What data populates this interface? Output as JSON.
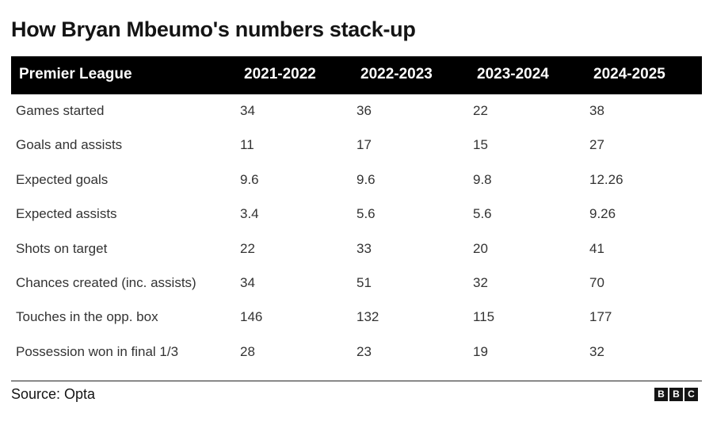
{
  "title": "How Bryan Mbeumo's numbers stack-up",
  "table": {
    "header": [
      "Premier League",
      "2021-2022",
      "2022-2023",
      "2023-2024",
      "2024-2025"
    ],
    "rows": [
      [
        "Games started",
        "34",
        "36",
        "22",
        "38"
      ],
      [
        "Goals and assists",
        "11",
        "17",
        "15",
        "27"
      ],
      [
        "Expected goals",
        "9.6",
        "9.6",
        "9.8",
        "12.26"
      ],
      [
        "Expected assists",
        "3.4",
        "5.6",
        "5.6",
        "9.26"
      ],
      [
        "Shots on target",
        "22",
        "33",
        "20",
        "41"
      ],
      [
        "Chances created (inc. assists)",
        "34",
        "51",
        "32",
        "70"
      ],
      [
        "Touches in the opp. box",
        "146",
        "132",
        "115",
        "177"
      ],
      [
        "Possession won in final 1/3",
        "28",
        "23",
        "19",
        "32"
      ]
    ]
  },
  "source": "Source: Opta",
  "logo": [
    "B",
    "B",
    "C"
  ]
}
